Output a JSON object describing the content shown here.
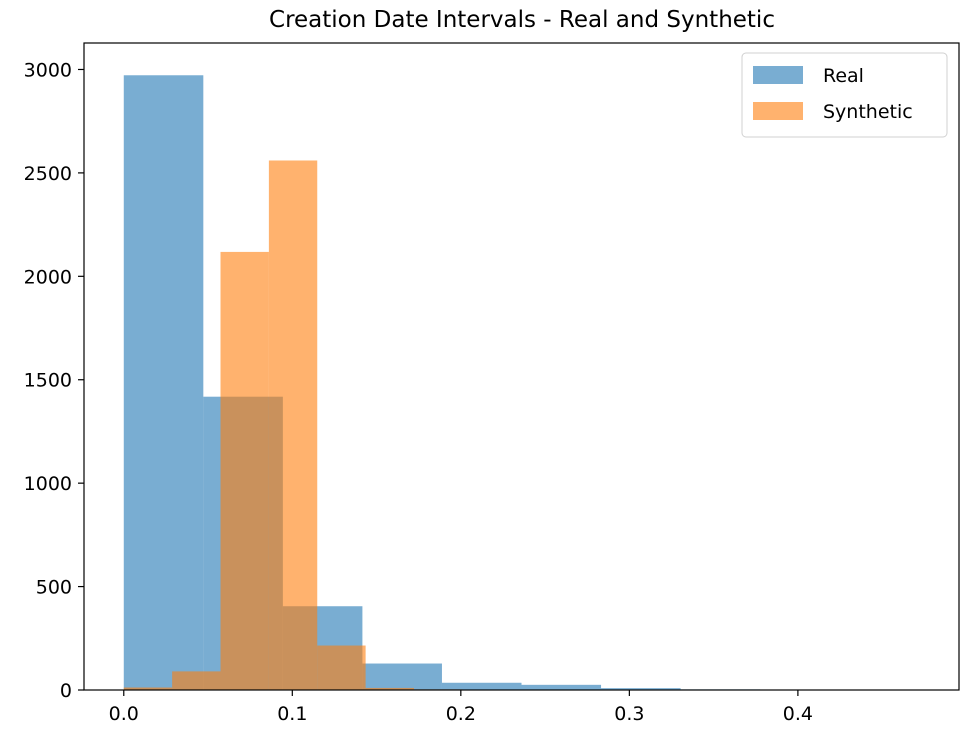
{
  "chart_data": {
    "type": "bar",
    "title": "Creation Date Intervals - Real and Synthetic",
    "xlabel": "",
    "ylabel": "",
    "xlim": [
      -0.0236,
      0.4956
    ],
    "ylim": [
      0,
      3128
    ],
    "xticks": [
      0.0,
      0.1,
      0.2,
      0.3,
      0.4
    ],
    "xtick_labels": [
      "0.0",
      "0.1",
      "0.2",
      "0.3",
      "0.4"
    ],
    "yticks": [
      0,
      500,
      1000,
      1500,
      2000,
      2500,
      3000
    ],
    "ytick_labels": [
      "0",
      "500",
      "1000",
      "1500",
      "2000",
      "2500",
      "3000"
    ],
    "grid": false,
    "legend_position": "top-right",
    "series": [
      {
        "name": "Real",
        "color": "#1f77b4",
        "opacity": 0.6,
        "bin_edges": [
          0.0,
          0.0472,
          0.0944,
          0.1416,
          0.1888,
          0.236,
          0.2832,
          0.3304,
          0.3776,
          0.4248,
          0.472
        ],
        "values": [
          2972,
          1418,
          405,
          128,
          35,
          25,
          9,
          3,
          1,
          1
        ]
      },
      {
        "name": "Synthetic",
        "color": "#ff7f0e",
        "opacity": 0.6,
        "bin_edges": [
          0.0,
          0.0287,
          0.0574,
          0.0861,
          0.1148,
          0.1435,
          0.1722,
          0.2009,
          0.2296,
          0.2583,
          0.287
        ],
        "values": [
          12,
          90,
          2118,
          2560,
          215,
          10,
          3,
          1,
          1,
          0
        ]
      }
    ]
  }
}
